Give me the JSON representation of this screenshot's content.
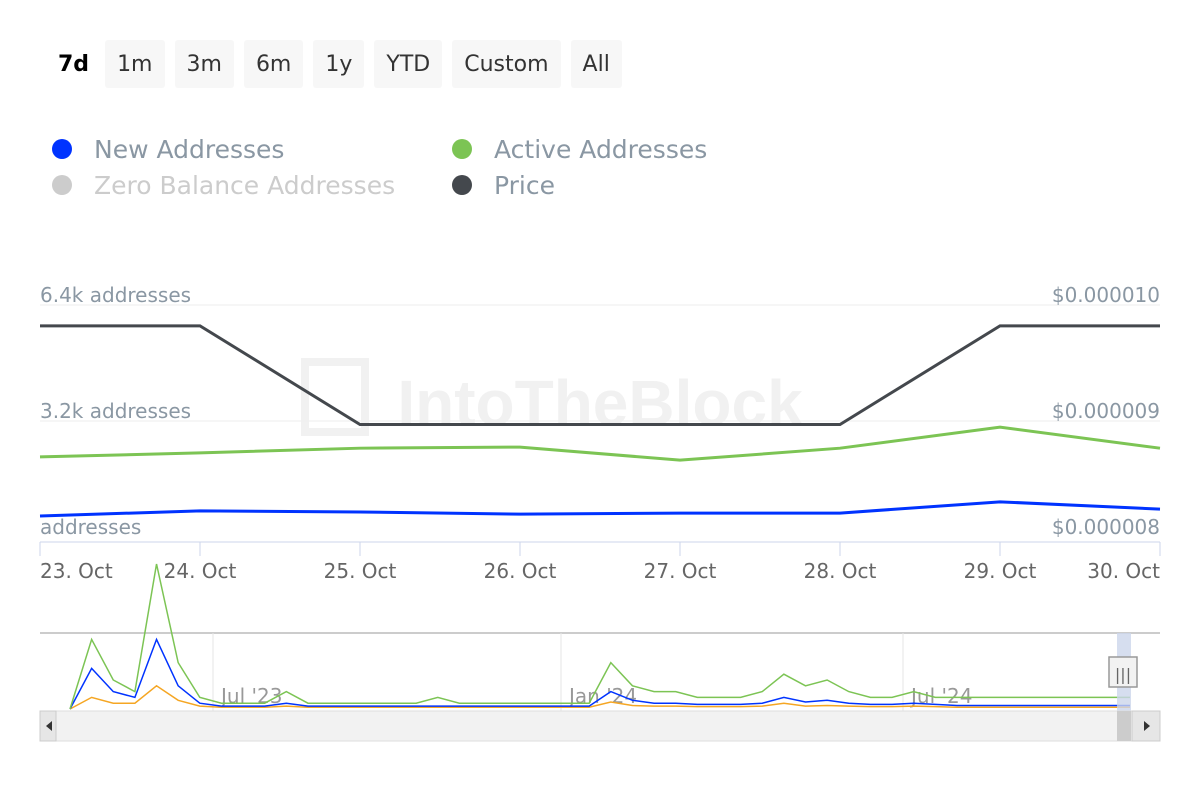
{
  "range_buttons": [
    {
      "label": "7d",
      "active": true
    },
    {
      "label": "1m"
    },
    {
      "label": "3m"
    },
    {
      "label": "6m"
    },
    {
      "label": "1y"
    },
    {
      "label": "YTD"
    },
    {
      "label": "Custom"
    },
    {
      "label": "All"
    }
  ],
  "legend": [
    {
      "label": "New Addresses",
      "color": "#0033ff",
      "enabled": true
    },
    {
      "label": "Active Addresses",
      "color": "#7cc454",
      "enabled": true
    },
    {
      "label": "Zero Balance Addresses",
      "color": "#cccccc",
      "enabled": false
    },
    {
      "label": "Price",
      "color": "#44484d",
      "enabled": true
    }
  ],
  "watermark": "IntoTheBlock",
  "chart_data": {
    "type": "line",
    "categories": [
      "23. Oct",
      "24. Oct",
      "25. Oct",
      "26. Oct",
      "27. Oct",
      "28. Oct",
      "29. Oct",
      "30. Oct"
    ],
    "y_left": {
      "ticks": [
        "addresses",
        "3.2k addresses",
        "6.4k addresses"
      ],
      "range": [
        0,
        6.4
      ]
    },
    "y_right": {
      "ticks": [
        "$0.000008",
        "$0.000009",
        "$0.000010"
      ],
      "range": [
        8e-06,
        1e-05
      ]
    },
    "series": [
      {
        "name": "Price",
        "axis": "right",
        "color": "#44484d",
        "values": [
          9.82e-06,
          9.82e-06,
          8.97e-06,
          8.97e-06,
          8.97e-06,
          8.97e-06,
          9.82e-06,
          9.82e-06
        ]
      },
      {
        "name": "Active Addresses",
        "axis": "left",
        "unit": "k",
        "color": "#7cc454",
        "values": [
          2.21,
          2.32,
          2.45,
          2.48,
          2.12,
          2.45,
          3.03,
          2.45
        ]
      },
      {
        "name": "New Addresses",
        "axis": "left",
        "unit": "k",
        "color": "#0033ff",
        "values": [
          0.58,
          0.72,
          0.69,
          0.63,
          0.66,
          0.66,
          0.97,
          0.77
        ]
      }
    ],
    "navigator": {
      "labels": [
        "Jul '23",
        "Jan '24",
        "Jul '24"
      ],
      "active": [
        0,
        12,
        5,
        3,
        25,
        8,
        2,
        1,
        1,
        1,
        3,
        1,
        1,
        1,
        1,
        1,
        1,
        2,
        1,
        1,
        1,
        1,
        1,
        1,
        1,
        8,
        4,
        3,
        3,
        2,
        2,
        2,
        3,
        6,
        4,
        5,
        3,
        2,
        2,
        3,
        2,
        2,
        2,
        2,
        2,
        2,
        2,
        2,
        2,
        2
      ],
      "new": [
        0,
        7,
        3,
        2,
        12,
        4,
        1,
        0.5,
        0.5,
        0.5,
        1,
        0.5,
        0.5,
        0.5,
        0.5,
        0.5,
        0.5,
        0.5,
        0.5,
        0.5,
        0.5,
        0.5,
        0.5,
        0.5,
        0.5,
        3,
        1.5,
        1,
        1,
        0.8,
        0.8,
        0.8,
        1,
        2,
        1.2,
        1.5,
        1,
        0.8,
        0.8,
        1,
        0.8,
        0.6,
        0.6,
        0.6,
        0.6,
        0.6,
        0.6,
        0.6,
        0.6,
        0.6
      ],
      "zero": [
        0,
        2,
        1,
        1,
        4,
        1.5,
        0.5,
        0.3,
        0.3,
        0.3,
        0.5,
        0.3,
        0.3,
        0.3,
        0.3,
        0.3,
        0.3,
        0.3,
        0.3,
        0.3,
        0.3,
        0.3,
        0.3,
        0.3,
        0.3,
        1.2,
        0.6,
        0.5,
        0.5,
        0.4,
        0.4,
        0.4,
        0.5,
        1,
        0.5,
        0.6,
        0.5,
        0.4,
        0.4,
        0.5,
        0.4,
        0.3,
        0.3,
        0.3,
        0.3,
        0.3,
        0.3,
        0.3,
        0.3,
        0.3
      ]
    }
  }
}
